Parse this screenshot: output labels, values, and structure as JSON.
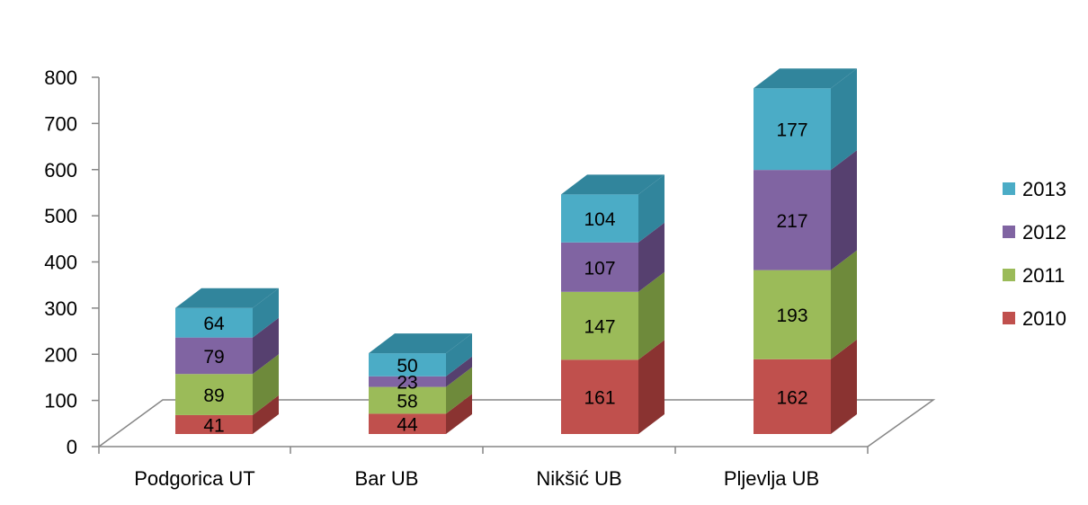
{
  "chart_data": {
    "type": "bar",
    "stacked": true,
    "three_d": true,
    "categories": [
      "Podgorica UT",
      "Bar UB",
      "Nikšić UB",
      "Pljevlja UB"
    ],
    "series": [
      {
        "name": "2010",
        "values": [
          41,
          44,
          161,
          162
        ],
        "color": "#c0504d",
        "side": "#8a3331",
        "top": "#d8817f"
      },
      {
        "name": "2011",
        "values": [
          89,
          58,
          147,
          193
        ],
        "color": "#9bbb59",
        "side": "#6e8a3b",
        "top": "#b8d07f"
      },
      {
        "name": "2012",
        "values": [
          79,
          23,
          107,
          217
        ],
        "color": "#8064a2",
        "side": "#56406f",
        "top": "#a38cbf"
      },
      {
        "name": "2013",
        "values": [
          64,
          50,
          104,
          177
        ],
        "color": "#4bacc6",
        "side": "#31859c",
        "top": "#31859c"
      }
    ],
    "y_ticks": [
      "0",
      "100",
      "200",
      "300",
      "400",
      "500",
      "600",
      "700",
      "800"
    ],
    "ylim": [
      0,
      800
    ],
    "legend_position": "right",
    "grid": false
  }
}
